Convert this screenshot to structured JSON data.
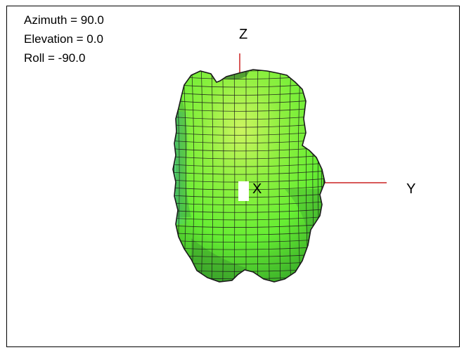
{
  "view_params": {
    "azimuth_text": "Azimuth = 90.0",
    "elevation_text": "Elevation = 0.0",
    "roll_text": "Roll = -90.0"
  },
  "axes": {
    "z_label": "Z",
    "y_label": "Y",
    "x_label": "X",
    "axis_color": "#cc2222"
  },
  "mesh": {
    "fill_color_main": "#66ee33",
    "fill_color_highlight": "#ccf560",
    "fill_color_shadow": "#3fb52a",
    "side_tint_color": "#44c7c0",
    "grid_line_color": "#1a1a1a"
  }
}
